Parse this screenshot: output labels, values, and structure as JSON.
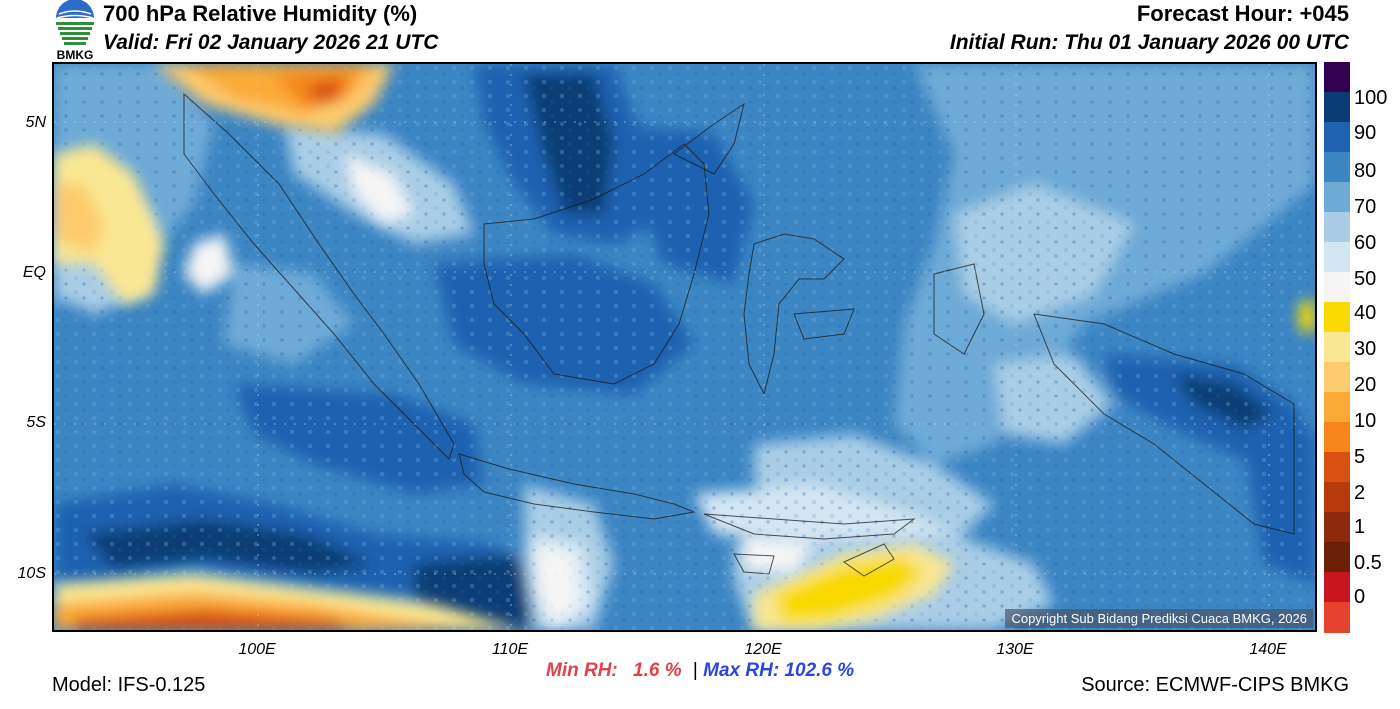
{
  "header": {
    "title": "700 hPa Relative Humidity (%)",
    "valid": "Valid: Fri 02 January 2026 21 UTC",
    "forecast_hour": "Forecast Hour: +045",
    "initial_run": "Initial Run: Thu 01 January 2026 00 UTC"
  },
  "logo_text": "BMKG",
  "map": {
    "lat_labels": [
      "5N",
      "EQ",
      "5S",
      "10S"
    ],
    "lon_labels": [
      "100E",
      "110E",
      "120E",
      "130E",
      "140E"
    ],
    "copyright": "Copyright Sub Bidang Prediksi Cuaca BMKG, 2026"
  },
  "colorbar": {
    "labels": [
      "100",
      "90",
      "80",
      "70",
      "60",
      "50",
      "40",
      "30",
      "20",
      "10",
      "5",
      "2",
      "1",
      "0.5",
      "0"
    ],
    "colors": [
      "#31004e",
      "#0b3c75",
      "#1e62b0",
      "#3c86c4",
      "#6eaad6",
      "#a9cde6",
      "#d4e6f2",
      "#f5f5f5",
      "#f8da00",
      "#fae793",
      "#fccb6e",
      "#fbaa38",
      "#f6861a",
      "#d8510e",
      "#b73a0d",
      "#8e2a0c",
      "#6b2008",
      "#c8161f",
      "#e5432d"
    ]
  },
  "stats": {
    "min_label": "Min RH:",
    "min_value": "1.6 %",
    "separator": "|",
    "max_label": "Max RH:",
    "max_value": "102.6 %"
  },
  "footer": {
    "model": "Model: IFS-0.125",
    "source": "Source: ECMWF-CIPS BMKG"
  }
}
